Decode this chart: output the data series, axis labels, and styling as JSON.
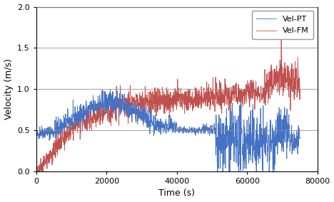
{
  "title": "",
  "xlabel": "Time (s)",
  "ylabel": "Velocity (m/s)",
  "xlim": [
    0,
    80000
  ],
  "ylim": [
    0,
    2
  ],
  "xticks": [
    0,
    20000,
    40000,
    60000,
    80000
  ],
  "yticks": [
    0,
    0.5,
    1.0,
    1.5,
    2.0
  ],
  "legend_labels": [
    "Vel-PT",
    "Vel-FM"
  ],
  "color_PT": "#4472C4",
  "color_FM": "#C0504D",
  "figsize": [
    4.68,
    2.84
  ],
  "dpi": 100,
  "background_color": "#FFFFFF",
  "grid_color": "#909090",
  "seed": 42
}
